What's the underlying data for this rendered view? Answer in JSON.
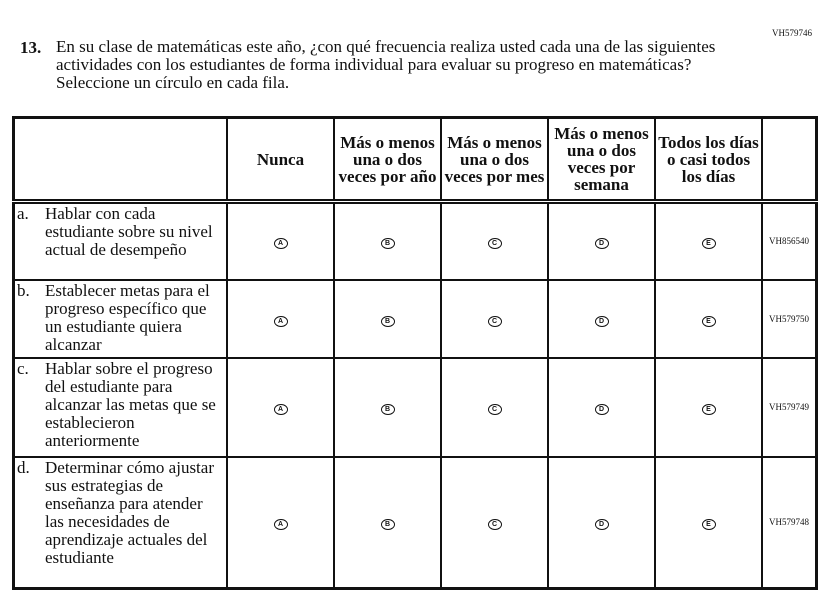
{
  "question": {
    "code": "VH579746",
    "number": "13.",
    "text": "En su clase de matemáticas este año, ¿con qué frecuencia realiza usted cada una de las siguientes actividades con los estudiantes de forma individual para evaluar su progreso en matemáticas? Seleccione un círculo en cada fila."
  },
  "columns": [
    "Nunca",
    "Más o menos una o dos veces por año",
    "Más o menos una o dos veces por mes",
    "Más o menos una o dos veces por semana",
    "Todos los días o casi todos los días"
  ],
  "options": [
    "A",
    "B",
    "C",
    "D",
    "E"
  ],
  "rows": [
    {
      "letter": "a.",
      "text": "Hablar con cada estudiante sobre su nivel actual de desempeño",
      "code": "VH856540"
    },
    {
      "letter": "b.",
      "text": "Establecer metas para el progreso específico que un estudiante quiera alcanzar",
      "code": "VH579750"
    },
    {
      "letter": "c.",
      "text": "Hablar sobre el progreso del estudiante para alcanzar las metas que se establecieron anteriormente",
      "code": "VH579749"
    },
    {
      "letter": "d.",
      "text": "Determinar cómo ajustar sus estrategias de enseñanza para atender las necesidades de aprendizaje actuales del estudiante",
      "code": "VH579748"
    }
  ]
}
